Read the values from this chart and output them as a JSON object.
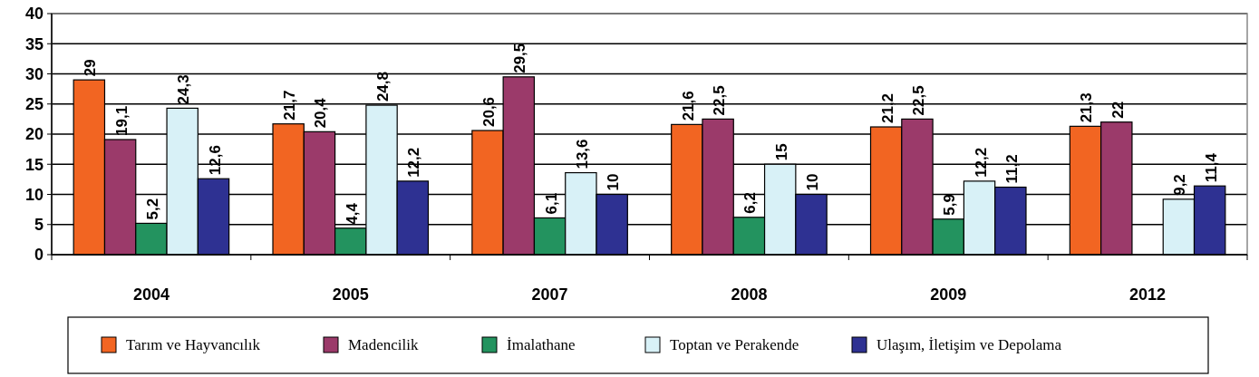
{
  "chart_data": {
    "type": "bar",
    "categories": [
      "2004",
      "2005",
      "2007",
      "2008",
      "2009",
      "2012"
    ],
    "series": [
      {
        "name": "Tarım ve Hayvancılık",
        "color": "#f26522",
        "values": [
          29,
          21.7,
          20.6,
          21.6,
          21.2,
          21.3
        ],
        "value_labels": [
          "29",
          "21,7",
          "20,6",
          "21,6",
          "21,2",
          "21,3"
        ]
      },
      {
        "name": "Madencilik",
        "color": "#9b3a6a",
        "values": [
          19.1,
          20.4,
          29.5,
          22.5,
          22.5,
          22
        ],
        "value_labels": [
          "19,1",
          "20,4",
          "29,5",
          "22,5",
          "22,5",
          "22"
        ]
      },
      {
        "name": "İmalathane",
        "color": "#23935f",
        "values": [
          5.2,
          4.4,
          6.1,
          6.2,
          5.9,
          null
        ],
        "value_labels": [
          "5,2",
          "4,4",
          "6,1",
          "6,2",
          "5,9",
          null
        ]
      },
      {
        "name": "Toptan ve Perakende",
        "color": "#d8f1f7",
        "values": [
          24.3,
          24.8,
          13.6,
          15,
          12.2,
          9.2
        ],
        "value_labels": [
          "24,3",
          "24,8",
          "13,6",
          "15",
          "12,2",
          "9,2"
        ]
      },
      {
        "name": "Ulaşım, İletişim ve Depolama",
        "color": "#2e3192",
        "values": [
          12.6,
          12.2,
          10,
          10,
          11.2,
          11.4
        ],
        "value_labels": [
          "12,6",
          "12,2",
          "10",
          "10",
          "11,2",
          "11,4"
        ]
      }
    ],
    "ylim": [
      0,
      40
    ],
    "yticks": [
      0,
      5,
      10,
      15,
      20,
      25,
      30,
      35,
      40
    ],
    "grid": "y",
    "legend": "bottom"
  }
}
